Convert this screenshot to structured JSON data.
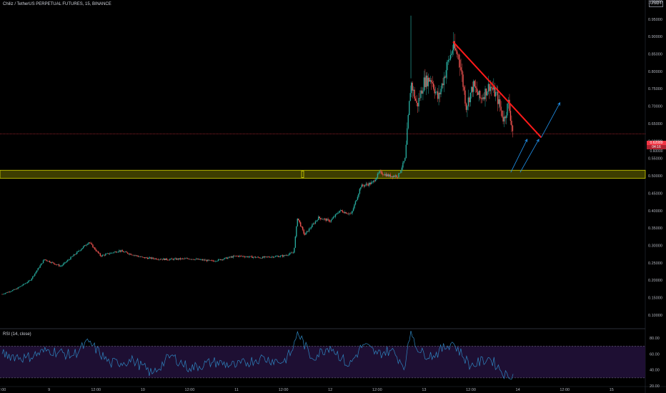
{
  "legend": {
    "symbol": "Chiliz / TetherUS PERPETUAL FUTURES, 15, BINANCE"
  },
  "currency_top": "---",
  "currency": "USDT",
  "rsi_legend": "RSI (14, close)",
  "price_tags": {
    "last_price": "0.62089",
    "countdown": "04:16",
    "lower": "0.60000"
  },
  "colors": {
    "background": "#000000",
    "up_candle": "#26a69a",
    "down_candle": "#ef5350",
    "support_zone_fill": "#3d3d00",
    "support_zone_border": "#d4d400",
    "trendline": "#ff1a1a",
    "arrows": "#2196f3",
    "rsi_line": "#2e86c1",
    "rsi_band": "#1e0f33",
    "price_line": "#f23645"
  },
  "chart_data": [
    {
      "type": "candlestick",
      "title": "Chiliz / TetherUS PERPETUAL FUTURES, 15, BINANCE",
      "x_ticks": [
        "2:00",
        "9",
        "12:00",
        "10",
        "12:00",
        "11",
        "12:00",
        "12",
        "12:00",
        "13",
        "12:00",
        "14",
        "12:00",
        "15"
      ],
      "y_ticks": [
        "1.00000",
        "0.95000",
        "0.90000",
        "0.85000",
        "0.80000",
        "0.75000",
        "0.70000",
        "0.65000",
        "0.60000",
        "0.55000",
        "0.50000",
        "0.45000",
        "0.40000",
        "0.35000",
        "0.30000",
        "0.25000",
        "0.20000",
        "0.15000",
        "0.10000"
      ],
      "ylim": [
        0.065,
        1.005
      ],
      "grid": false,
      "price_path": [
        {
          "x": 0.0,
          "y": 0.16
        },
        {
          "x": 0.3,
          "y": 0.175
        },
        {
          "x": 0.6,
          "y": 0.2
        },
        {
          "x": 0.9,
          "y": 0.26
        },
        {
          "x": 1.25,
          "y": 0.24
        },
        {
          "x": 1.6,
          "y": 0.28
        },
        {
          "x": 1.85,
          "y": 0.31
        },
        {
          "x": 2.1,
          "y": 0.27
        },
        {
          "x": 2.5,
          "y": 0.285
        },
        {
          "x": 3.0,
          "y": 0.265
        },
        {
          "x": 3.5,
          "y": 0.26
        },
        {
          "x": 4.0,
          "y": 0.262
        },
        {
          "x": 4.5,
          "y": 0.255
        },
        {
          "x": 5.0,
          "y": 0.27
        },
        {
          "x": 5.5,
          "y": 0.265
        },
        {
          "x": 6.0,
          "y": 0.27
        },
        {
          "x": 6.22,
          "y": 0.28
        },
        {
          "x": 6.3,
          "y": 0.38
        },
        {
          "x": 6.45,
          "y": 0.33
        },
        {
          "x": 6.75,
          "y": 0.38
        },
        {
          "x": 7.0,
          "y": 0.37
        },
        {
          "x": 7.2,
          "y": 0.4
        },
        {
          "x": 7.45,
          "y": 0.39
        },
        {
          "x": 7.65,
          "y": 0.47
        },
        {
          "x": 7.9,
          "y": 0.48
        },
        {
          "x": 8.05,
          "y": 0.51
        },
        {
          "x": 8.25,
          "y": 0.5
        },
        {
          "x": 8.45,
          "y": 0.5
        },
        {
          "x": 8.6,
          "y": 0.55
        },
        {
          "x": 8.72,
          "y": 0.77
        },
        {
          "x": 8.85,
          "y": 0.7
        },
        {
          "x": 9.0,
          "y": 0.77
        },
        {
          "x": 9.15,
          "y": 0.78
        },
        {
          "x": 9.3,
          "y": 0.72
        },
        {
          "x": 9.5,
          "y": 0.82
        },
        {
          "x": 9.62,
          "y": 0.87
        },
        {
          "x": 9.75,
          "y": 0.84
        },
        {
          "x": 9.9,
          "y": 0.7
        },
        {
          "x": 10.05,
          "y": 0.76
        },
        {
          "x": 10.2,
          "y": 0.72
        },
        {
          "x": 10.4,
          "y": 0.76
        },
        {
          "x": 10.55,
          "y": 0.73
        },
        {
          "x": 10.7,
          "y": 0.66
        },
        {
          "x": 10.8,
          "y": 0.71
        },
        {
          "x": 10.9,
          "y": 0.62
        }
      ],
      "spike_high": {
        "x": 8.72,
        "y": 0.96
      },
      "support_zone": {
        "low": 0.493,
        "high": 0.516
      },
      "current_price": 0.62089,
      "trendline": {
        "start": {
          "x": 9.62,
          "y": 0.885
        },
        "end": {
          "x": 11.5,
          "y": 0.61
        }
      },
      "arrows": [
        {
          "from": {
            "x": 10.85,
            "y": 0.51
          },
          "to": {
            "x": 11.2,
            "y": 0.605
          }
        },
        {
          "from": {
            "x": 11.05,
            "y": 0.51
          },
          "to": {
            "x": 11.45,
            "y": 0.605
          }
        },
        {
          "from": {
            "x": 11.5,
            "y": 0.61
          },
          "to": {
            "x": 11.9,
            "y": 0.71
          }
        }
      ]
    },
    {
      "type": "line",
      "title": "RSI (14, close)",
      "y_ticks": [
        "80.00",
        "60.00",
        "40.00",
        "20.00"
      ],
      "ylim": [
        20,
        90
      ],
      "band": [
        30,
        70
      ],
      "series": [
        {
          "x": [
            0.0,
            0.5,
            1.0,
            1.5,
            1.85,
            2.3,
            2.8,
            3.2,
            3.6,
            4.0,
            4.5,
            5.0,
            5.5,
            6.0,
            6.2,
            6.3,
            6.6,
            7.0,
            7.4,
            7.7,
            8.0,
            8.3,
            8.6,
            8.72,
            8.9,
            9.2,
            9.6,
            10.0,
            10.4,
            10.8,
            10.9
          ],
          "values": [
            60,
            55,
            65,
            58,
            75,
            48,
            52,
            35,
            58,
            42,
            50,
            45,
            55,
            50,
            65,
            88,
            55,
            70,
            45,
            72,
            60,
            65,
            45,
            90,
            62,
            58,
            75,
            45,
            55,
            30,
            35
          ]
        }
      ]
    }
  ]
}
